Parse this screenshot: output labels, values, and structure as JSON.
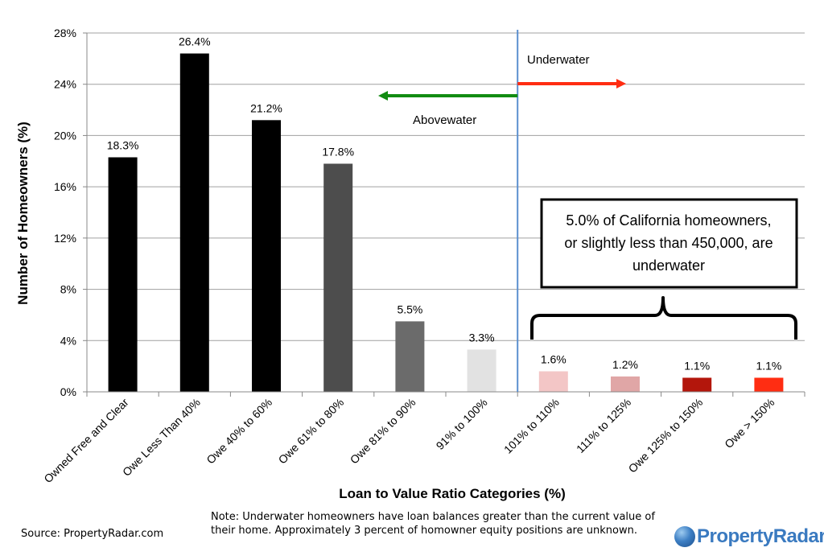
{
  "chart_data": {
    "type": "bar",
    "title": "",
    "xlabel": "Loan to Value Ratio Categories (%)",
    "ylabel": "Number of Homeowners (%)",
    "ylim": [
      0,
      28
    ],
    "yticks": [
      0,
      4,
      8,
      12,
      16,
      20,
      24,
      28
    ],
    "ytick_labels": [
      "0%",
      "4%",
      "8%",
      "12%",
      "16%",
      "20%",
      "24%",
      "28%"
    ],
    "grid": true,
    "categories": [
      "Owned Free and Clear",
      "Owe Less Than 40%",
      "Owe 40% to 60%",
      "Owe 61% to 80%",
      "Owe 81% to 90%",
      "91% to 100%",
      "101% to 110%",
      "111% to 125%",
      "Owe 125% to 150%",
      "Owe > 150%"
    ],
    "values": [
      18.3,
      26.4,
      21.2,
      17.8,
      5.5,
      3.3,
      1.6,
      1.2,
      1.1,
      1.1
    ],
    "value_labels": [
      "18.3%",
      "26.4%",
      "21.2%",
      "17.8%",
      "5.5%",
      "3.3%",
      "1.6%",
      "1.2%",
      "1.1%",
      "1.1%"
    ],
    "colors": [
      "#000000",
      "#000000",
      "#000000",
      "#4d4d4d",
      "#6b6b6b",
      "#e2e2e2",
      "#f3c6c6",
      "#e0a6a6",
      "#b3160c",
      "#ff2d12"
    ],
    "divider_after_index": 5,
    "annotations": {
      "underwater": "Underwater",
      "abovewater": "Abovewater",
      "callout": [
        "5.0% of California homeowners,",
        "or slightly less than 450,000, are",
        "underwater"
      ]
    },
    "arrow_colors": {
      "underwater": "#ff2d12",
      "abovewater": "#128c12"
    },
    "divider_color": "#5b8fcf"
  },
  "footer": {
    "source": "Source: PropertyRadar.com",
    "note": "Note: Underwater homeowners have loan balances greater than the current value of their home. Approximately 3 percent of homowner equity positions are unknown.",
    "logo": "PropertyRadar"
  }
}
